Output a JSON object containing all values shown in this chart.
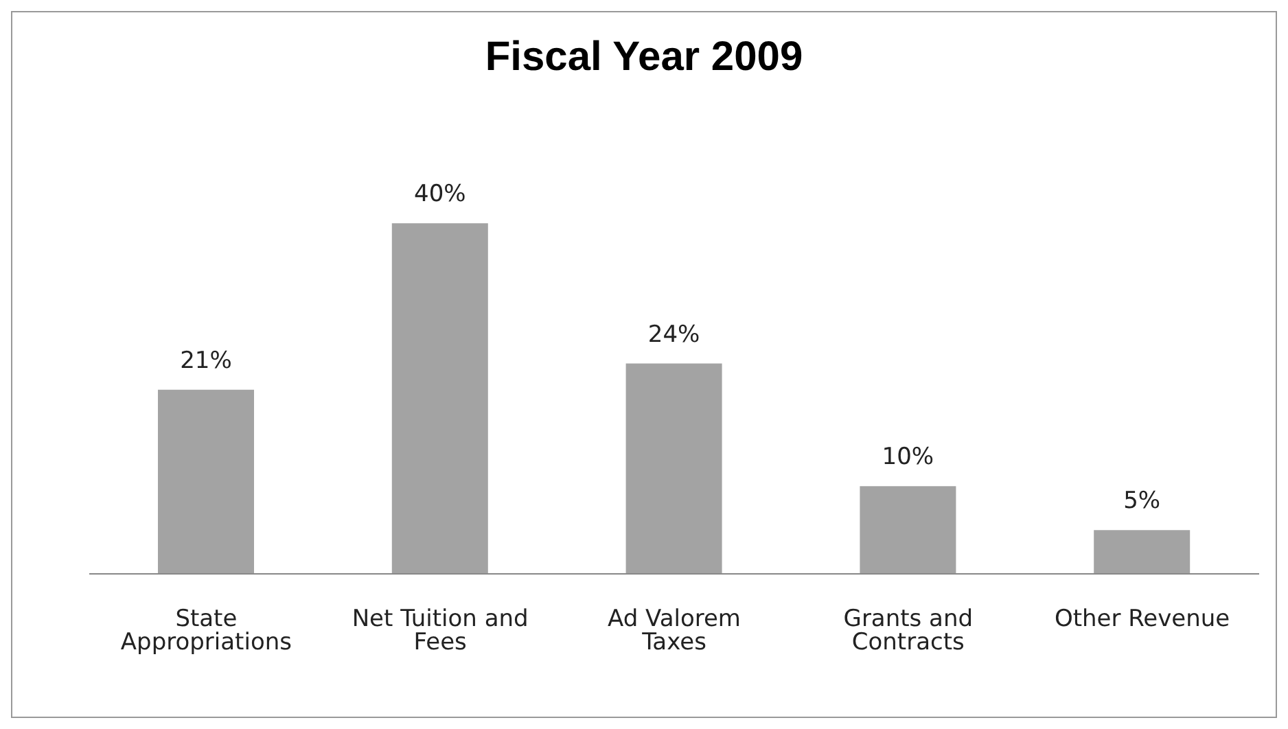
{
  "chart_data": {
    "type": "bar",
    "title": "Fiscal Year 2009",
    "categories": [
      "State Appropriations",
      "Net Tuition and Fees",
      "Ad Valorem Taxes",
      "Grants and Contracts",
      "Other Revenue"
    ],
    "values": [
      21,
      40,
      24,
      10,
      5
    ],
    "value_labels": [
      "21%",
      "40%",
      "24%",
      "10%",
      "5%"
    ],
    "color": "#a3a3a3",
    "grid": false,
    "legend": false
  }
}
